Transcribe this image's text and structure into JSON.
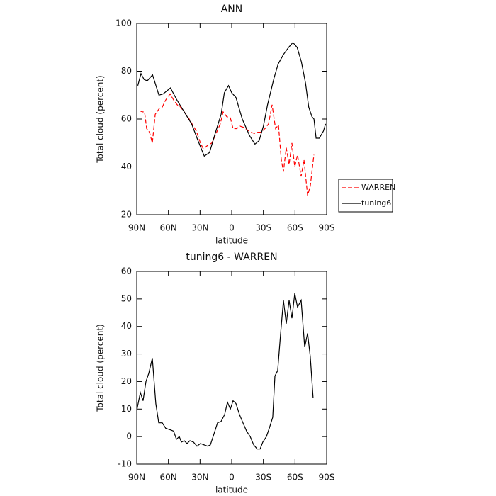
{
  "chart_data": [
    {
      "type": "line",
      "title": "ANN",
      "x_label": "latitude",
      "y_label": "Total cloud (percent)",
      "xlim": [
        90,
        -90
      ],
      "xticks": [
        {
          "value": 90,
          "label": "90N"
        },
        {
          "value": 60,
          "label": "60N"
        },
        {
          "value": 30,
          "label": "30N"
        },
        0,
        {
          "value": -30,
          "label": "30S"
        },
        {
          "value": -60,
          "label": "60S"
        },
        {
          "value": -90,
          "label": "90S"
        }
      ],
      "ylim": [
        20,
        100
      ],
      "yticks": [
        20,
        40,
        60,
        80,
        100
      ],
      "legend": "right",
      "series": [
        {
          "name": "WARREN",
          "color": "#ff0000",
          "line_style": "dashed",
          "x": [
            87.3,
            84.6,
            82.6,
            80.6,
            77.9,
            75.2,
            72.5,
            68.5,
            65.8,
            62.5,
            58.4,
            55.1,
            51.7,
            48.4,
            45,
            41,
            37.6,
            33.6,
            29.6,
            26.9,
            22.8,
            18.8,
            14.8,
            10.8,
            8.1,
            4.7,
            1.3,
            -1.3,
            -4.7,
            -8,
            -11.4,
            -14.8,
            -18.1,
            -21.5,
            -24.8,
            -27.5,
            -31.6,
            -34.9,
            -38.3,
            -41.6,
            -44.3,
            -47,
            -49,
            -51.7,
            -54.4,
            -57.1,
            -59.8,
            -62.4,
            -65.8,
            -68.5,
            -71.9,
            -74.5,
            -77.9
          ],
          "values": [
            63.5,
            63,
            63,
            56,
            54.5,
            50,
            62,
            64.5,
            65,
            68,
            70.5,
            68,
            66,
            65,
            63,
            60.5,
            58,
            55,
            50,
            47.5,
            49,
            50,
            54,
            58,
            63,
            61,
            60.5,
            56,
            56,
            57,
            56.5,
            55.5,
            54.5,
            54,
            54.5,
            54.5,
            56,
            58,
            66,
            56,
            57.5,
            43,
            38,
            48,
            41,
            50,
            40,
            45,
            36,
            43,
            28,
            32,
            45
          ]
        },
        {
          "name": "tuning6",
          "color": "#000000",
          "line_style": "solid",
          "x": [
            89,
            86,
            83,
            80,
            75,
            69,
            65,
            58,
            52,
            45,
            38,
            32,
            26,
            21,
            15,
            10,
            7,
            3,
            0,
            -4,
            -10,
            -17,
            -22,
            -26,
            -30,
            -34,
            -40,
            -44,
            -49,
            -54,
            -58,
            -62,
            -66,
            -70,
            -73,
            -76,
            -78,
            -80,
            -83,
            -87,
            -89
          ],
          "values": [
            74,
            79,
            76.5,
            76,
            78.5,
            70,
            70.5,
            73,
            68,
            63,
            58,
            51,
            44.5,
            46,
            55,
            62,
            71,
            74,
            71,
            69,
            60,
            53,
            49.5,
            51,
            57,
            66,
            77,
            83,
            87,
            90,
            92,
            90,
            84,
            75,
            65,
            61,
            60,
            52,
            52,
            55,
            58
          ]
        }
      ]
    },
    {
      "type": "line",
      "title": "tuning6 - WARREN",
      "x_label": "latitude",
      "y_label": "Total cloud (percent)",
      "xlim": [
        90,
        -90
      ],
      "xticks": [
        {
          "value": 90,
          "label": "90N"
        },
        {
          "value": 60,
          "label": "60N"
        },
        {
          "value": 30,
          "label": "30N"
        },
        0,
        {
          "value": -30,
          "label": "30S"
        },
        {
          "value": -60,
          "label": "60S"
        },
        {
          "value": -90,
          "label": "90S"
        }
      ],
      "ylim": [
        -10,
        60
      ],
      "yticks": [
        -10,
        0,
        10,
        20,
        30,
        40,
        50,
        60
      ],
      "series": [
        {
          "color": "#000000",
          "line_style": "solid",
          "x": [
            90,
            86.6,
            84,
            81.3,
            78.6,
            75.2,
            71.9,
            69.2,
            65.8,
            62.5,
            58.4,
            55.1,
            52.4,
            49.7,
            47.7,
            45,
            42.3,
            39.6,
            36.3,
            32.9,
            29.6,
            26.2,
            22.8,
            20.2,
            16.8,
            13.4,
            10.1,
            6.7,
            4,
            1.3,
            -1.3,
            -4,
            -7.4,
            -10.7,
            -14.1,
            -17.5,
            -20.8,
            -24.2,
            -26.9,
            -29.5,
            -32.9,
            -35.6,
            -38.9,
            -41,
            -43.6,
            -46.3,
            -49,
            -51.7,
            -54.4,
            -57.1,
            -59.8,
            -62.4,
            -65.8,
            -69.2,
            -71.9,
            -74.5,
            -77.2
          ],
          "values": [
            9.5,
            16,
            13,
            20,
            23,
            28.5,
            12,
            5,
            5,
            3,
            2.5,
            2,
            -1,
            0,
            -2,
            -1.5,
            -2.5,
            -1.5,
            -2,
            -3.5,
            -2.5,
            -3,
            -3.5,
            -3,
            1,
            5,
            5.5,
            8,
            12.5,
            10,
            13,
            12,
            8,
            5,
            2,
            0,
            -3,
            -4.5,
            -4.5,
            -2,
            0,
            3,
            7,
            22,
            24,
            37,
            49.5,
            41,
            49.5,
            43,
            52,
            47,
            49.5,
            32.5,
            37.5,
            29,
            14
          ]
        }
      ]
    }
  ]
}
